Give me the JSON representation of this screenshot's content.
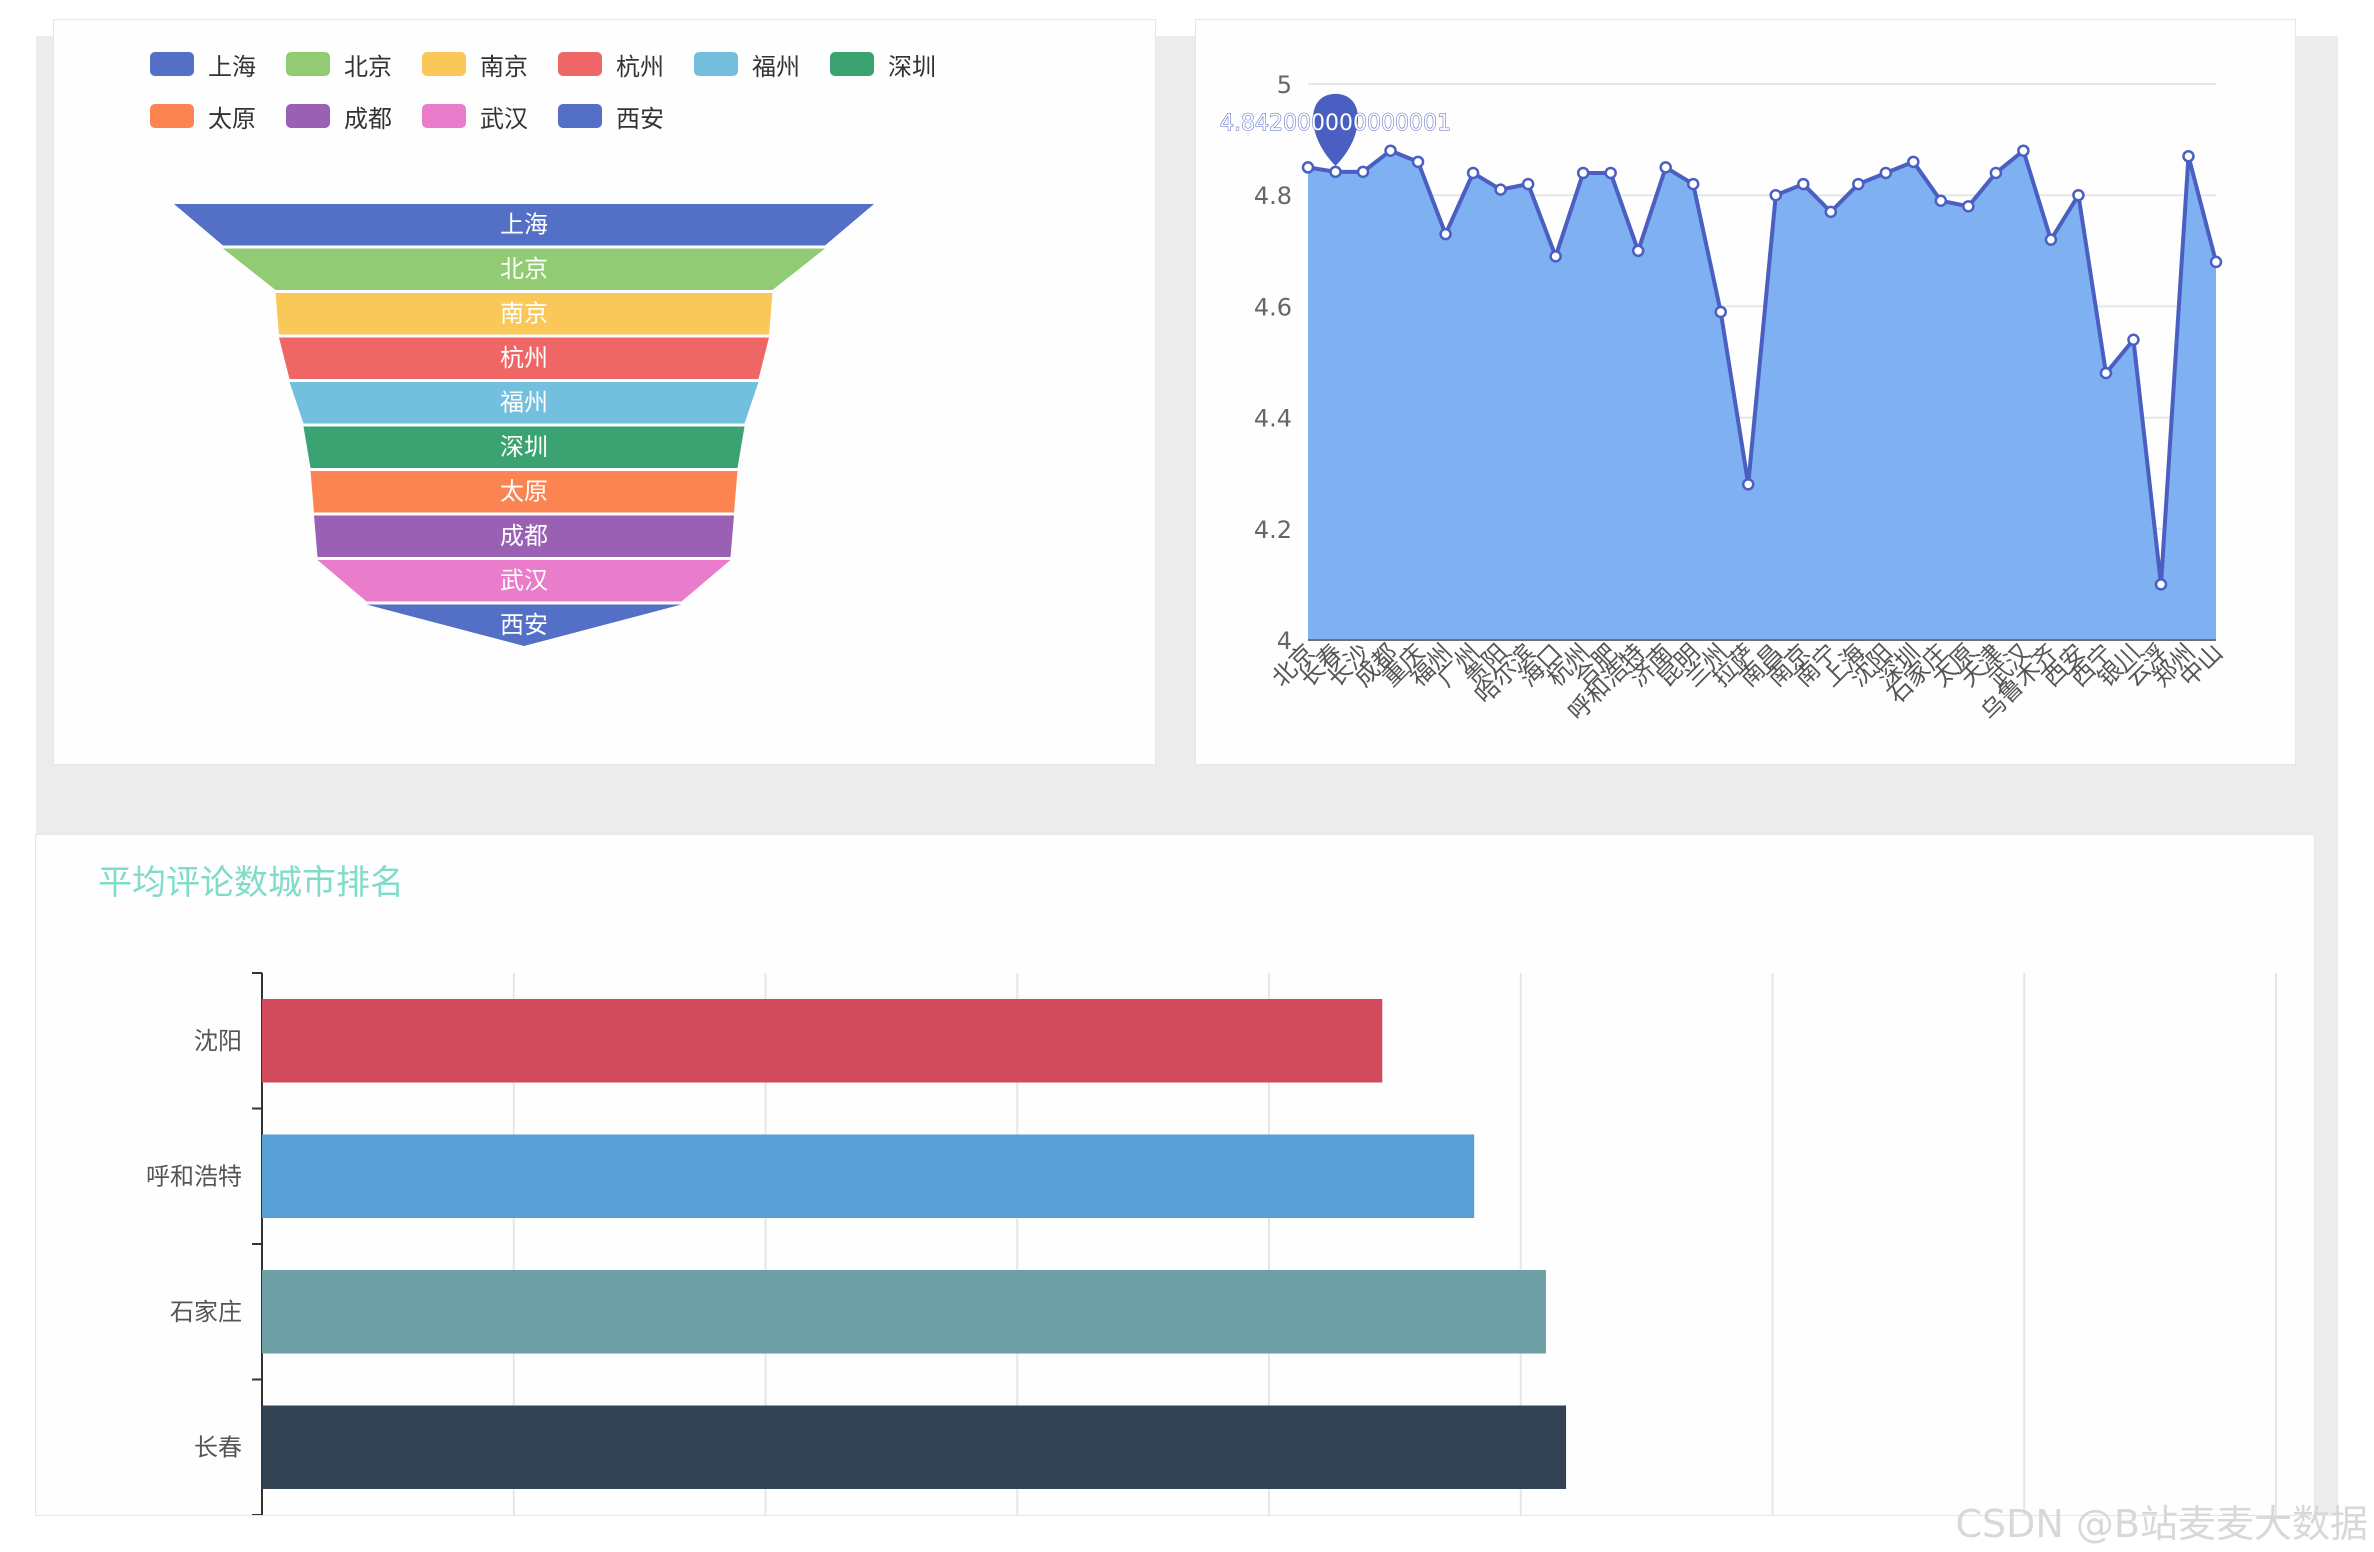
{
  "funnel": {
    "legend": [
      {
        "label": "上海",
        "color": "#5470c6"
      },
      {
        "label": "北京",
        "color": "#91cc75"
      },
      {
        "label": "南京",
        "color": "#fac858"
      },
      {
        "label": "杭州",
        "color": "#ee6666"
      },
      {
        "label": "福州",
        "color": "#73c0de"
      },
      {
        "label": "深圳",
        "color": "#3ba272"
      },
      {
        "label": "太原",
        "color": "#fc8452"
      },
      {
        "label": "成都",
        "color": "#9a60b4"
      },
      {
        "label": "武汉",
        "color": "#ea7ccc"
      },
      {
        "label": "西安",
        "color": "#5470c6"
      }
    ]
  },
  "line": {
    "tooltip_value": "4.842000000000001",
    "area_color": "#7eb0f2",
    "line_color": "#4a5fc1"
  },
  "bar": {
    "title": "平均评论数城市排名"
  },
  "footer_watermark": "CSDN @B站麦麦大数据",
  "chart_data": [
    {
      "type": "funnel",
      "categories": [
        "上海",
        "北京",
        "南京",
        "杭州",
        "福州",
        "深圳",
        "太原",
        "成都",
        "武汉",
        "西安"
      ],
      "values": [
        100,
        86,
        71,
        70,
        67,
        63,
        61,
        60,
        59,
        45
      ],
      "legend_position": "top-left"
    },
    {
      "type": "area",
      "categories": [
        "北京",
        "长春",
        "长沙",
        "成都",
        "重庆",
        "福州",
        "广州",
        "贵阳",
        "哈尔滨",
        "海口",
        "杭州",
        "合肥",
        "呼和浩特",
        "济南",
        "昆明",
        "兰州",
        "拉萨",
        "南昌",
        "南京",
        "南宁",
        "上海",
        "沈阳",
        "深圳",
        "石家庄",
        "太原",
        "天津",
        "武汉",
        "乌鲁木齐",
        "西安",
        "西宁",
        "银川",
        "云浮",
        "郑州",
        "中山"
      ],
      "values": [
        4.85,
        4.842,
        4.842,
        4.88,
        4.86,
        4.73,
        4.84,
        4.81,
        4.82,
        4.69,
        4.84,
        4.84,
        4.7,
        4.85,
        4.82,
        4.59,
        4.28,
        4.8,
        4.82,
        4.77,
        4.82,
        4.84,
        4.86,
        4.79,
        4.78,
        4.84,
        4.88,
        4.72,
        4.8,
        4.48,
        4.54,
        4.1,
        4.87,
        4.68
      ],
      "ylim": [
        4,
        5
      ],
      "yticks": [
        4,
        4.2,
        4.4,
        4.6,
        4.8,
        5
      ],
      "grid": true
    },
    {
      "type": "bar",
      "orientation": "horizontal",
      "categories": [
        "沈阳",
        "呼和浩特",
        "石家庄",
        "长春"
      ],
      "values": [
        4450,
        4815,
        5100,
        5180
      ],
      "colors": [
        "#d24b5c",
        "#579fd4",
        "#6e9ea6",
        "#334353"
      ],
      "xlim": [
        0,
        8000
      ],
      "grid": true
    }
  ]
}
